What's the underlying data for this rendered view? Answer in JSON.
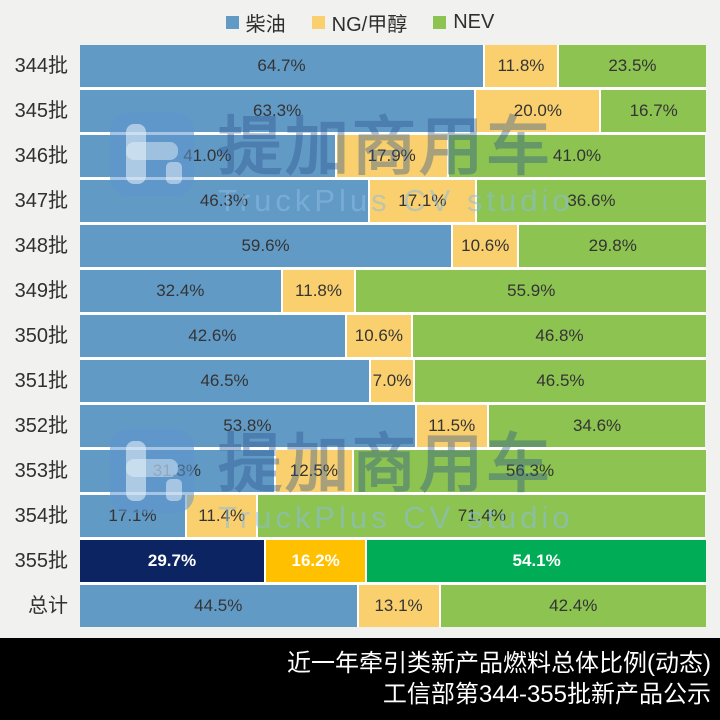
{
  "legend": {
    "items": [
      {
        "label": "柴油",
        "color": "#629AC6"
      },
      {
        "label": "NG/甲醇",
        "color": "#FAD06E"
      },
      {
        "label": "NEV",
        "color": "#8CC351"
      }
    ]
  },
  "chart_data": {
    "type": "bar",
    "stacked": true,
    "orientation": "horizontal",
    "xlim": [
      0,
      100
    ],
    "value_suffix": "%",
    "legend_position": "top",
    "categories": [
      "344批",
      "345批",
      "346批",
      "347批",
      "348批",
      "349批",
      "350批",
      "351批",
      "352批",
      "353批",
      "354批",
      "355批",
      "总计"
    ],
    "series": [
      {
        "name": "柴油",
        "color": "#629AC6",
        "highlight_color": "#0C2461",
        "values": [
          64.7,
          63.3,
          41.0,
          46.3,
          59.6,
          32.4,
          42.6,
          46.5,
          53.8,
          31.3,
          17.1,
          29.7,
          44.5
        ]
      },
      {
        "name": "NG/甲醇",
        "color": "#FAD06E",
        "highlight_color": "#FFC000",
        "values": [
          11.8,
          20.0,
          17.9,
          17.1,
          10.6,
          11.8,
          10.6,
          7.0,
          11.5,
          12.5,
          11.4,
          16.2,
          13.1
        ]
      },
      {
        "name": "NEV",
        "color": "#8CC351",
        "highlight_color": "#00AC55",
        "values": [
          23.5,
          16.7,
          41.0,
          36.6,
          29.8,
          55.9,
          46.8,
          46.5,
          34.6,
          56.3,
          71.4,
          54.1,
          42.4
        ]
      }
    ],
    "highlight_category": "355批"
  },
  "watermark": {
    "title": "提加商用车",
    "subtitle": "TruckPlus CV studio"
  },
  "footer": {
    "line1": "近一年牵引类新产品燃料总体比例(动态)",
    "line2": "工信部第344-355批新产品公示"
  },
  "colors": {
    "background": "#F1F1F0",
    "footer_background": "#000000",
    "segment_label": "#343434",
    "highlight_segment_label": "#FFFFFF",
    "separator": "#FFFFFF"
  }
}
